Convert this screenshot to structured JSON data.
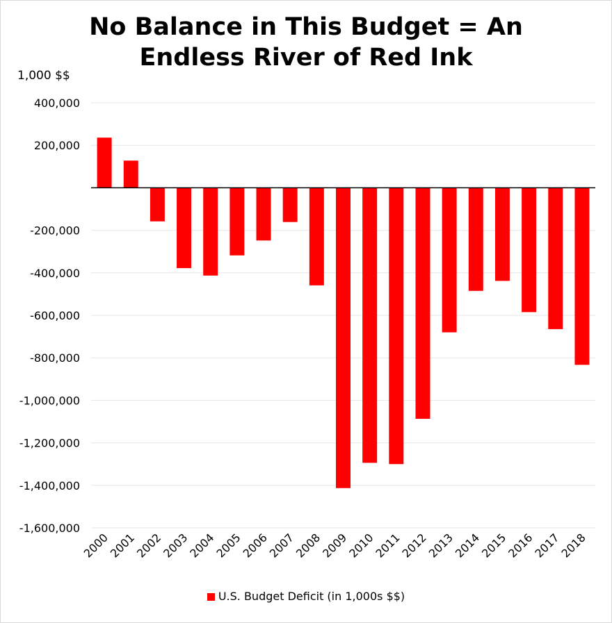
{
  "chart_data": {
    "type": "bar",
    "title": "No Balance in This Budget = An\nEndless River of Red Ink",
    "unit_label": "1,000 $$",
    "categories": [
      "2000",
      "2001",
      "2002",
      "2003",
      "2004",
      "2005",
      "2006",
      "2007",
      "2008",
      "2009",
      "2010",
      "2011",
      "2012",
      "2013",
      "2014",
      "2015",
      "2016",
      "2017",
      "2018"
    ],
    "series": [
      {
        "name": "U.S. Budget Deficit (in 1,000s $$)",
        "color": "#ff0000",
        "values": [
          236000,
          128000,
          -158000,
          -378000,
          -413000,
          -318000,
          -248000,
          -161000,
          -459000,
          -1413000,
          -1294000,
          -1300000,
          -1087000,
          -680000,
          -485000,
          -438000,
          -585000,
          -665000,
          -833000
        ]
      }
    ],
    "y_ticks": [
      {
        "value": 400000,
        "label": "400,000"
      },
      {
        "value": 200000,
        "label": "200,000"
      },
      {
        "value": 0,
        "label": ""
      },
      {
        "value": -200000,
        "label": "-200,000"
      },
      {
        "value": -400000,
        "label": "-400,000"
      },
      {
        "value": -600000,
        "label": "-600,000"
      },
      {
        "value": -800000,
        "label": "-800,000"
      },
      {
        "value": -1000000,
        "label": "-1,000,000"
      },
      {
        "value": -1200000,
        "label": "-1,200,000"
      },
      {
        "value": -1400000,
        "label": "-1,400,000"
      },
      {
        "value": -1600000,
        "label": "-1,600,000"
      }
    ],
    "ylim": [
      -1600000,
      400000
    ],
    "grid": true,
    "legend_position": "bottom"
  }
}
